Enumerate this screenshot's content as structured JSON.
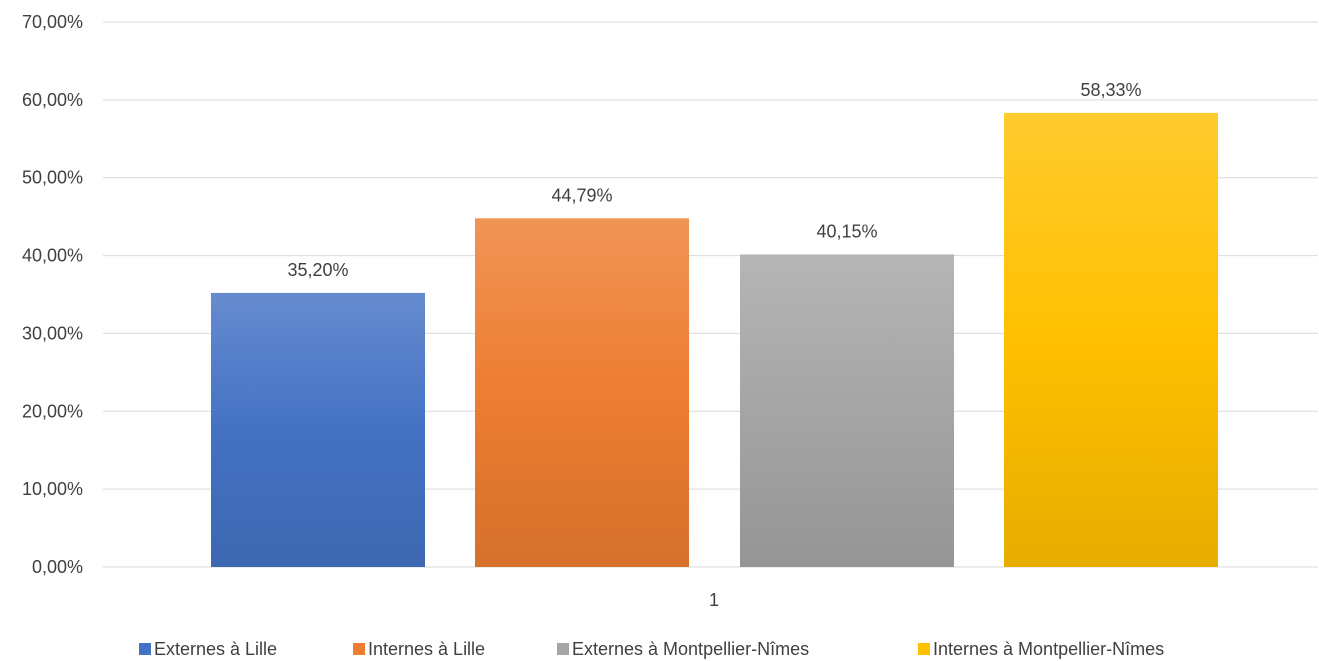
{
  "chart_data": {
    "type": "bar",
    "categories": [
      "1"
    ],
    "series": [
      {
        "name": "Externes à Lille",
        "values": [
          35.2
        ],
        "label": "35,20%",
        "color": "#4472c4"
      },
      {
        "name": "Internes à Lille",
        "values": [
          44.79
        ],
        "label": "44,79%",
        "color": "#ed7d31"
      },
      {
        "name": "Externes à Montpellier-Nîmes",
        "values": [
          40.15
        ],
        "label": "40,15%",
        "color": "#a5a5a5"
      },
      {
        "name": "Internes à Montpellier-Nîmes",
        "values": [
          58.33
        ],
        "label": "58,33%",
        "color": "#ffc000"
      }
    ],
    "ylim": [
      0,
      70
    ],
    "yticks": [
      0,
      10,
      20,
      30,
      40,
      50,
      60,
      70
    ],
    "ytick_labels": [
      "0,00%",
      "10,00%",
      "20,00%",
      "30,00%",
      "40,00%",
      "50,00%",
      "60,00%",
      "70,00%"
    ],
    "title": "",
    "xlabel": "",
    "ylabel": "",
    "grid": true,
    "legend_position": "bottom"
  }
}
